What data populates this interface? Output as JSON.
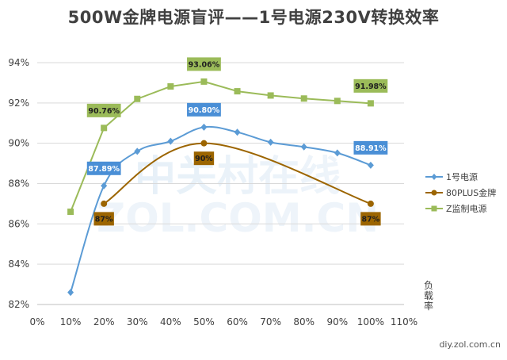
{
  "chart_data": {
    "type": "line",
    "title": "500W金牌电源盲评——1号电源230V转换效率",
    "ylabel": "负载率",
    "x_ticks": [
      "0%",
      "10%",
      "20%",
      "30%",
      "40%",
      "50%",
      "60%",
      "70%",
      "80%",
      "90%",
      "100%",
      "110%"
    ],
    "y_ticks": [
      "82%",
      "84%",
      "86%",
      "88%",
      "90%",
      "92%",
      "94%"
    ],
    "xlim": [
      0,
      110
    ],
    "ylim": [
      82,
      94
    ],
    "grid": "horizontal",
    "legend_position": "right",
    "series": [
      {
        "name": "1号电源",
        "color": "#5b9bd5",
        "marker": "diamond",
        "smooth": true,
        "x": [
          10,
          20,
          30,
          40,
          50,
          60,
          70,
          80,
          90,
          100
        ],
        "y": [
          82.6,
          87.89,
          89.6,
          90.1,
          90.8,
          90.55,
          90.05,
          89.82,
          89.52,
          88.91
        ]
      },
      {
        "name": "80PLUS金牌",
        "color": "#9c6500",
        "marker": "circle",
        "smooth": true,
        "x": [
          20,
          50,
          100
        ],
        "y": [
          87,
          90,
          87
        ]
      },
      {
        "name": "Z监制电源",
        "color": "#9bbb59",
        "marker": "square",
        "smooth": false,
        "x": [
          10,
          20,
          30,
          40,
          50,
          60,
          70,
          80,
          90,
          100
        ],
        "y": [
          86.6,
          90.76,
          92.2,
          92.82,
          93.06,
          92.58,
          92.37,
          92.22,
          92.1,
          91.98
        ]
      }
    ],
    "annotations": [
      {
        "text": "90.76%",
        "x": 20,
        "y": 90.76,
        "bg": "#9bbb59",
        "fg": "#1f1f1f",
        "place": "above"
      },
      {
        "text": "93.06%",
        "x": 50,
        "y": 93.06,
        "bg": "#9bbb59",
        "fg": "#1f1f1f",
        "place": "above"
      },
      {
        "text": "91.98%",
        "x": 100,
        "y": 91.98,
        "bg": "#9bbb59",
        "fg": "#1f1f1f",
        "place": "above"
      },
      {
        "text": "87.89%",
        "x": 20,
        "y": 87.89,
        "bg": "#4a8fd6",
        "fg": "#ffffff",
        "place": "above"
      },
      {
        "text": "90.80%",
        "x": 50,
        "y": 90.8,
        "bg": "#4a8fd6",
        "fg": "#ffffff",
        "place": "above"
      },
      {
        "text": "88.91%",
        "x": 100,
        "y": 88.91,
        "bg": "#4a8fd6",
        "fg": "#ffffff",
        "place": "above"
      },
      {
        "text": "87%",
        "x": 20,
        "y": 87,
        "bg": "#9c6500",
        "fg": "#1f1f1f",
        "place": "below"
      },
      {
        "text": "90%",
        "x": 50,
        "y": 90,
        "bg": "#9c6500",
        "fg": "#1f1f1f",
        "place": "below"
      },
      {
        "text": "87%",
        "x": 100,
        "y": 87,
        "bg": "#9c6500",
        "fg": "#1f1f1f",
        "place": "below"
      }
    ],
    "watermark": "中关村在线 ZOL.COM.CN",
    "source": "diy.zol.com.cn"
  }
}
